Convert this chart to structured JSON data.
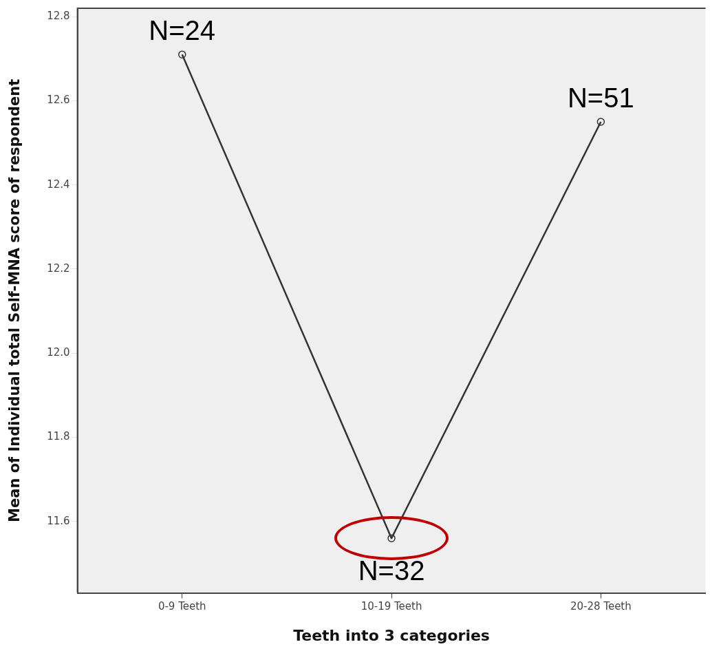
{
  "chart_data": {
    "type": "line",
    "xlabel": "Teeth into 3 categories",
    "ylabel": "Mean of Individual total Self-MNA score of respondent",
    "categories": [
      "0-9 Teeth",
      "10-19 Teeth",
      "20-28 Teeth"
    ],
    "series": [
      {
        "color": "#333333",
        "values": [
          12.71,
          11.56,
          12.55
        ]
      }
    ],
    "ylim": [
      11.43,
      12.82
    ],
    "yticks": [
      11.6,
      11.8,
      {
        "value": 12,
        "label": "12.0"
      },
      12.2,
      12.4,
      12.6,
      12.8
    ],
    "marker": "circle",
    "line_style": "solid",
    "grid": false,
    "legend": false,
    "annotations": [
      {
        "text": "N=24",
        "x": "0-9 Teeth",
        "y": 12.71
      },
      {
        "text": "N=32",
        "x": "10-19 Teeth",
        "y": 11.56
      },
      {
        "text": "N=51",
        "x": "20-28 Teeth",
        "y": 12.55
      }
    ]
  }
}
